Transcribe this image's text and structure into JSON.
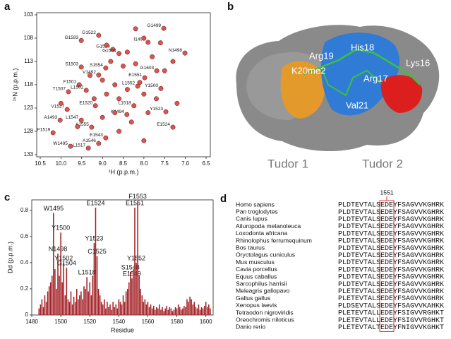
{
  "panel_labels": [
    "a",
    "b",
    "c",
    "d"
  ],
  "chart_data": [
    {
      "type": "scatter",
      "xlabel": "¹H (p.p.m.)",
      "ylabel": "¹⁵N (p.p.m.)",
      "color": "#e0524c",
      "xlim": [
        10.5,
        6.5
      ],
      "ylim": [
        133,
        103
      ],
      "xticks": [
        {
          "value": 10.5,
          "label": "10.5"
        },
        {
          "value": 10,
          "label": "10.0"
        },
        9.5,
        {
          "value": 9,
          "label": "9.0"
        },
        8.5,
        {
          "value": 8,
          "label": "8.0"
        },
        7.5,
        {
          "value": 7,
          "label": "7.0"
        },
        6.5
      ],
      "yticks": [
        103,
        108,
        113,
        118,
        123,
        128,
        133
      ],
      "x": [
        7.52,
        9.51,
        9.09,
        8.75,
        8.6,
        7.9,
        7.01,
        7.69,
        7.98,
        7.59,
        9.51,
        9.09,
        8.92,
        9.56,
        9.82,
        9.39,
        8.15,
        9.85,
        9.17,
        8.41,
        8.24,
        7.47,
        10.02,
        9.51,
        7.3,
        10.19,
        9.26,
        8.92,
        9.09,
        9.77,
        9.34,
        8.2,
        8.0,
        7.6,
        8.4,
        8.8,
        8.5,
        8.2,
        7.8,
        7.3,
        9.0,
        8.7,
        8.4,
        8.0,
        7.7,
        8.6,
        8.9,
        9.2,
        8.3,
        8.7,
        9.0,
        7.9,
        7.2,
        9.6,
        8.6,
        8.0,
        10.0,
        9.3,
        7.5,
        8.1,
        8.9
      ],
      "y": [
        105.9,
        108.5,
        107.4,
        110.4,
        111.3,
        108.9,
        111.2,
        115,
        116.5,
        118.8,
        114.2,
        115.9,
        114.4,
        118,
        119.5,
        119.2,
        118.3,
        123.3,
        122.5,
        124.4,
        122.5,
        123.8,
        125.6,
        125.6,
        127.1,
        128.3,
        127.1,
        129.4,
        130.6,
        131.2,
        131.6,
        106,
        108,
        109,
        111,
        113,
        114,
        113.5,
        112,
        113,
        117,
        118,
        119,
        120,
        121,
        121,
        120,
        121,
        126,
        124,
        125,
        124,
        122,
        127,
        128,
        130,
        122,
        116,
        115,
        117.5,
        109.5
      ],
      "labels": [
        "G1499",
        "G1593",
        "G1522",
        "G1529",
        "G1504",
        "I1496",
        "N1498",
        "G1603",
        "E1551",
        "Y1500",
        "S1503",
        "V1492",
        "S1554",
        "F1501",
        "T1507",
        "L1502",
        "L1552",
        "V1527",
        "E1520",
        "K1494",
        "L1518",
        "Y1523",
        "A1493",
        "L1547",
        "E1524",
        "F1519",
        "A1555",
        "E1543",
        "A1546",
        "W1495",
        "L1517",
        null,
        null,
        null,
        null,
        null,
        null,
        null,
        null,
        null,
        null,
        null,
        null,
        null,
        null,
        null,
        null,
        null,
        null,
        null,
        null,
        null,
        null,
        null,
        null,
        null,
        null,
        null,
        null,
        null,
        null
      ]
    },
    {
      "type": "bar",
      "xlabel": "Residue",
      "ylabel": "Dd (p.p.m.)",
      "color": "#a31f24",
      "xlim": [
        1480,
        1605
      ],
      "ylim": [
        0,
        0.88
      ],
      "xticks": [
        1480,
        1500,
        1520,
        1540,
        1560,
        1580,
        1600
      ],
      "yticks": [
        0,
        0.2,
        0.4,
        0.6,
        0.8
      ],
      "x": [
        1485,
        1486,
        1487,
        1488,
        1489,
        1490,
        1491,
        1492,
        1493,
        1494,
        1495,
        1496,
        1497,
        1498,
        1499,
        1500,
        1501,
        1502,
        1503,
        1504,
        1505,
        1506,
        1507,
        1508,
        1509,
        1510,
        1511,
        1512,
        1513,
        1514,
        1515,
        1516,
        1517,
        1518,
        1519,
        1520,
        1521,
        1522,
        1523,
        1524,
        1525,
        1526,
        1527,
        1528,
        1529,
        1530,
        1531,
        1532,
        1533,
        1534,
        1535,
        1536,
        1537,
        1538,
        1539,
        1540,
        1541,
        1542,
        1543,
        1544,
        1545,
        1546,
        1547,
        1548,
        1549,
        1550,
        1551,
        1552,
        1553,
        1554,
        1555,
        1556,
        1557,
        1558,
        1559,
        1560,
        1561,
        1562,
        1563,
        1564,
        1565,
        1566,
        1567,
        1568,
        1569,
        1570,
        1571,
        1572,
        1573,
        1574,
        1575,
        1576,
        1577,
        1578,
        1579,
        1580,
        1581,
        1582,
        1583,
        1584,
        1585,
        1586,
        1587,
        1588,
        1589,
        1590,
        1591,
        1592,
        1593,
        1594,
        1595,
        1596,
        1597,
        1598,
        1599,
        1600,
        1601,
        1602,
        1603
      ],
      "values": [
        0.05,
        0.08,
        0.12,
        0.06,
        0.15,
        0.1,
        0.18,
        0.22,
        0.25,
        0.3,
        0.78,
        0.35,
        0.2,
        0.47,
        0.3,
        0.63,
        0.25,
        0.4,
        0.15,
        0.36,
        0.12,
        0.1,
        0.18,
        0.08,
        0.14,
        0.1,
        0.2,
        0.12,
        0.15,
        0.18,
        0.12,
        0.22,
        0.2,
        0.29,
        0.18,
        0.25,
        0.15,
        0.3,
        0.55,
        0.82,
        0.45,
        0.2,
        0.15,
        0.1,
        0.08,
        0.12,
        0.05,
        0.1,
        0.06,
        0.08,
        0.04,
        0.1,
        0.06,
        0.08,
        0.05,
        0.12,
        0.1,
        0.08,
        0.15,
        0.1,
        0.18,
        0.2,
        0.25,
        0.33,
        0.28,
        0.35,
        0.82,
        0.4,
        0.87,
        0.3,
        0.2,
        0.15,
        0.1,
        0.12,
        0.08,
        0.1,
        0.06,
        0.08,
        0.05,
        0.07,
        0.04,
        0.06,
        0.05,
        0.08,
        0.04,
        0.06,
        0.03,
        0.05,
        0.07,
        0.04,
        0.06,
        0.05,
        0.03,
        0.04,
        0.06,
        0.05,
        0.08,
        0.06,
        0.04,
        0.05,
        0.07,
        0.06,
        0.12,
        0.1,
        0.14,
        0.12,
        0.08,
        0.1,
        0.06,
        0.05,
        0.08,
        0.04,
        0.06,
        0.05,
        0.07,
        0.1,
        0.06,
        0.08,
        0.05
      ],
      "labels": [
        null,
        null,
        null,
        null,
        null,
        null,
        null,
        null,
        null,
        null,
        "W1495",
        null,
        null,
        "N1498",
        null,
        "Y1500",
        null,
        "Y1502",
        null,
        "G1504",
        null,
        null,
        null,
        null,
        null,
        null,
        null,
        null,
        null,
        null,
        null,
        null,
        null,
        "L1518",
        null,
        null,
        null,
        null,
        "Y1523",
        "E1524",
        "C1525",
        null,
        null,
        null,
        null,
        null,
        null,
        null,
        null,
        null,
        null,
        null,
        null,
        null,
        null,
        null,
        null,
        null,
        null,
        null,
        null,
        null,
        null,
        "S1548",
        "E1549",
        null,
        "E1551",
        "Y1552",
        "F1553",
        null,
        null,
        null,
        null,
        null,
        null,
        null,
        null,
        null,
        null,
        null,
        null,
        null,
        null,
        null,
        null,
        null,
        null,
        null,
        null,
        null,
        null,
        null,
        null,
        null,
        null,
        null,
        null,
        null,
        null,
        null,
        null,
        null,
        null,
        null,
        null,
        null,
        null,
        null,
        null,
        null,
        null,
        null,
        null,
        null,
        null,
        null,
        null,
        null,
        null
      ]
    }
  ],
  "structure": {
    "residue_labels": [
      "Arg19",
      "His18",
      "K20me2",
      "Lys16",
      "Arg17",
      "Val21"
    ],
    "domain_labels": [
      "Tudor 1",
      "Tudor 2"
    ]
  },
  "alignment": {
    "position_label": "1551",
    "rows": [
      {
        "species": "Homo sapiens",
        "sequence": "PLDTEVTALSEDEYFSAGVVKGHRK"
      },
      {
        "species": "Pan troglodytes",
        "sequence": "PLDTEVTALSEDEYFSAGVVKGHRK"
      },
      {
        "species": "Canis lupus",
        "sequence": "PLDTEVTALSEDEYFSAGVVKGHRK"
      },
      {
        "species": "Ailuropoda melanoleuca",
        "sequence": "PLDTEVTALSEDEYFSAGVVKGHRK"
      },
      {
        "species": "Loxodonta africana",
        "sequence": "PLDTEVTALSEDEYFSAGVVKGHRK"
      },
      {
        "species": "Rhinolophus ferrumequinum",
        "sequence": "PLDTEVTALSEDEYFSAGVVKGHRK"
      },
      {
        "species": "Bos taurus",
        "sequence": "PLDTEVTALSEDEYFSAGVVKGHRK"
      },
      {
        "species": "Oryctolagus cuniculus",
        "sequence": "PLDTEVTALSEDEYFSAGVVKGHRK"
      },
      {
        "species": "Mus musculus",
        "sequence": "PLDTEVTALSEDEYFSAGVVKGHRK"
      },
      {
        "species": "Cavia porcellus",
        "sequence": "PLDTEVTALSEDEYFSAGVVKGHRK"
      },
      {
        "species": "Equus caballus",
        "sequence": "PLDTEVTALSEDEYFSAGVVKGHRK"
      },
      {
        "species": "Sarcophilus harrisii",
        "sequence": "PLDTEVTALSEDEYFSAGVVKGHRK"
      },
      {
        "species": "Meleagris gallopavo",
        "sequence": "PLETEVTALSEDEYFSAGVVKGHRK"
      },
      {
        "species": "Gallus gallus",
        "sequence": "PLETEVTALSEDEYFSAGVVKGHRK"
      },
      {
        "species": "Xenopus laevis",
        "sequence": "PLDSEVTALSEDEYFSAGVVKAHKK"
      },
      {
        "species": "Tetraodon nigroviridis",
        "sequence": "PLETEVTALLEDEYFSIGVVRGHKT"
      },
      {
        "species": "Oreochromis niloticus",
        "sequence": "PLETEVTALLEDEYFSIGVVRGHKT"
      },
      {
        "species": "Danio rerio",
        "sequence": "PLETEVTALTEDEYFNIGVVKGHKT"
      }
    ]
  }
}
